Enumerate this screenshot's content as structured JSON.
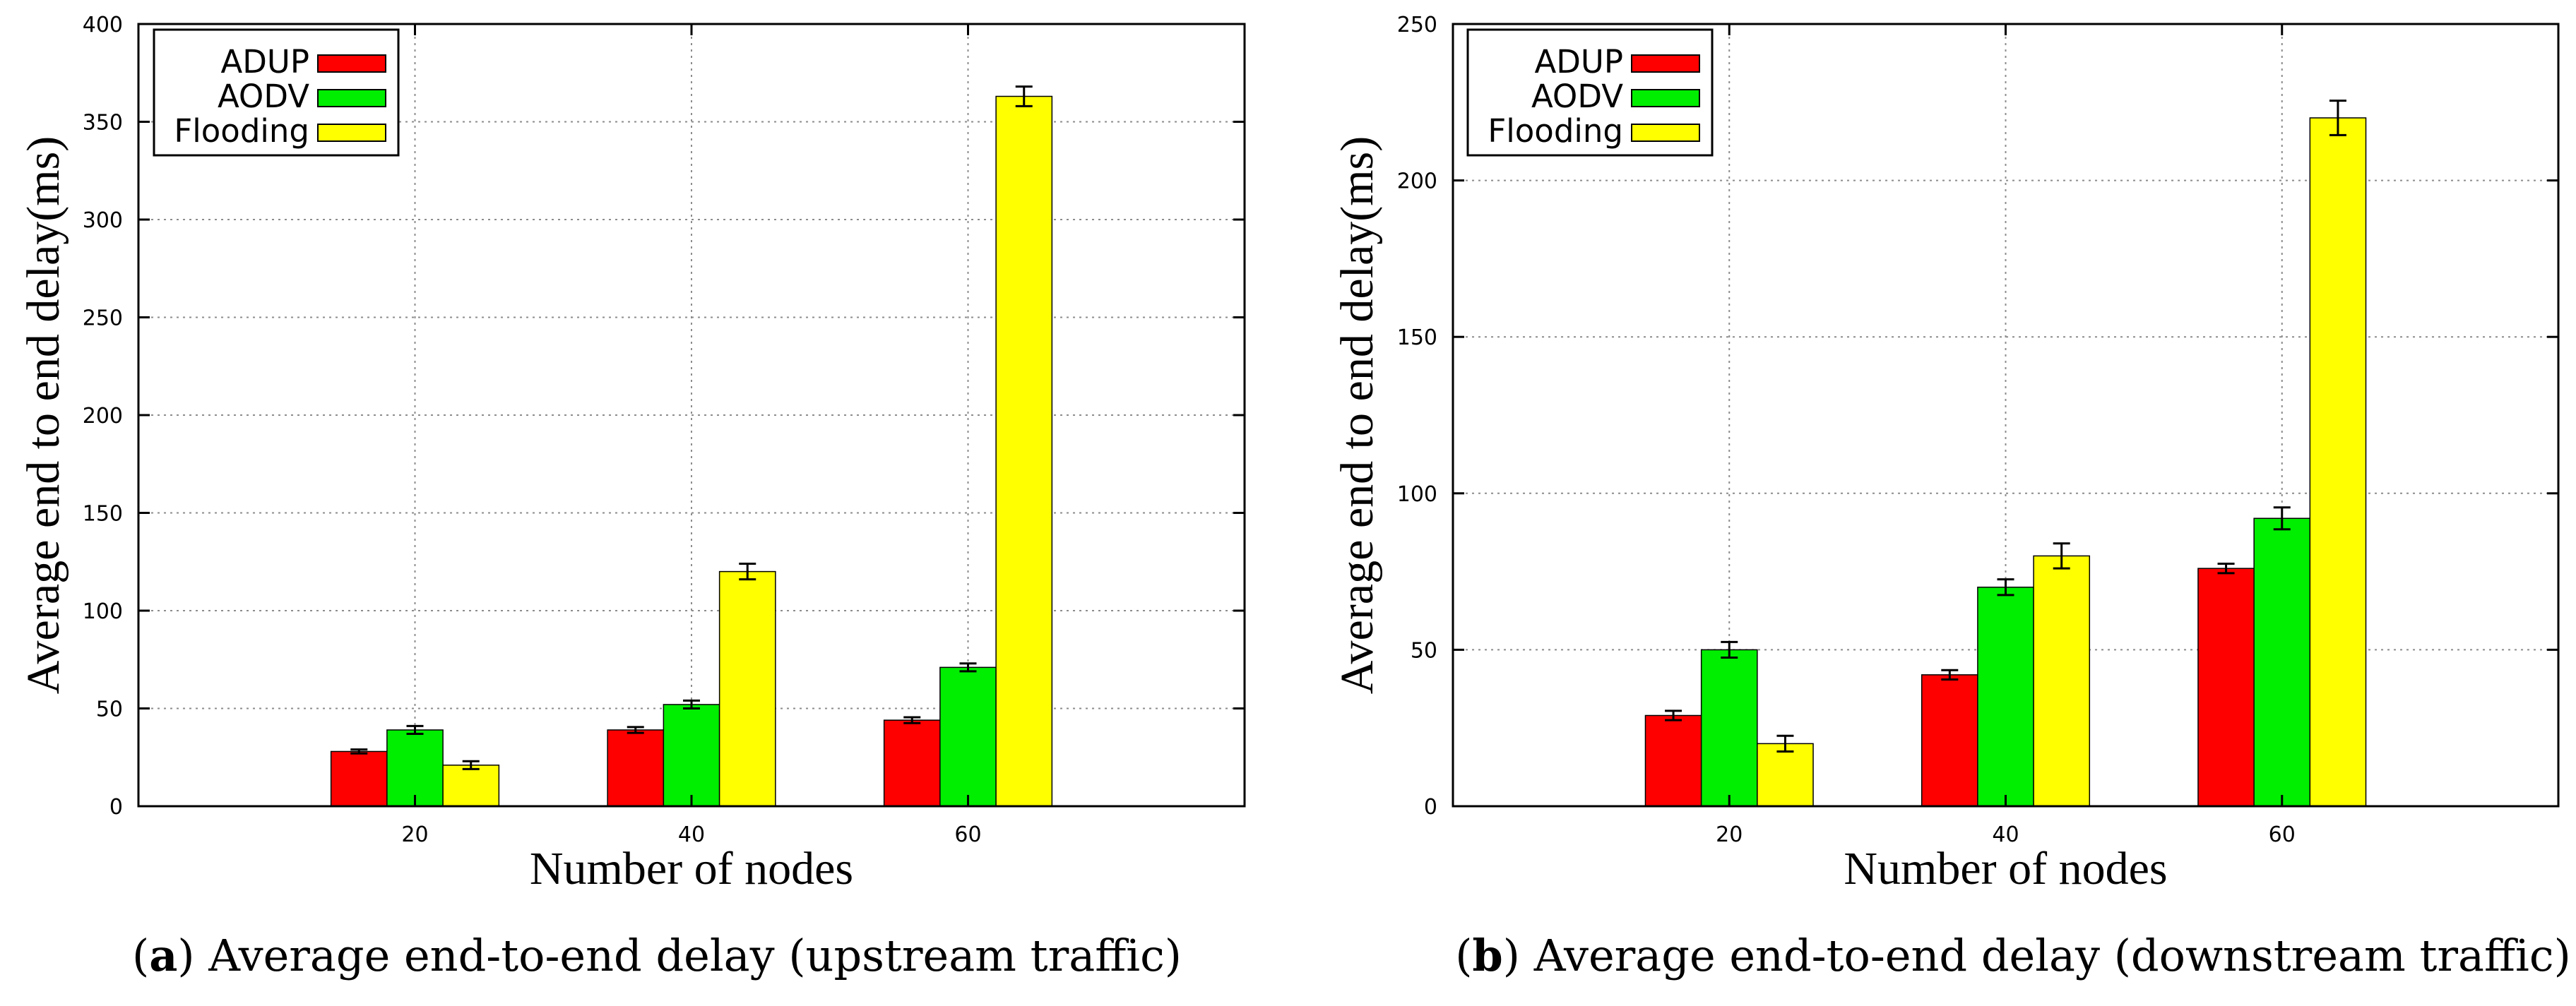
{
  "colors": {
    "adup": "#ff0000",
    "aodv": "#00ee00",
    "flooding": "#ffff00",
    "grid": "#8c8c8c",
    "axis": "#000000"
  },
  "chart_data": [
    {
      "type": "bar",
      "title": "",
      "xlabel": "Number of nodes",
      "ylabel": "Average end to end delay(ms)",
      "categories": [
        "20",
        "40",
        "60"
      ],
      "ylim": [
        0,
        400
      ],
      "yticks": [
        "0",
        "50",
        "100",
        "150",
        "200",
        "250",
        "300",
        "350",
        "400"
      ],
      "grid": true,
      "legend_position": "top-left",
      "series": [
        {
          "name": "ADUP",
          "color": "#ff0000",
          "values": [
            28,
            39,
            44
          ],
          "errors": [
            1,
            1.5,
            1.5
          ]
        },
        {
          "name": "AODV",
          "color": "#00ee00",
          "values": [
            39,
            52,
            71
          ],
          "errors": [
            2,
            2,
            2
          ]
        },
        {
          "name": "Flooding",
          "color": "#ffff00",
          "values": [
            21,
            120,
            363
          ],
          "errors": [
            2,
            4,
            5
          ]
        }
      ],
      "caption_label": "a",
      "caption_text": " Average end-to-end delay (upstream traffic)"
    },
    {
      "type": "bar",
      "title": "",
      "xlabel": "Number of nodes",
      "ylabel": "Average end to end delay(ms)",
      "categories": [
        "20",
        "40",
        "60"
      ],
      "ylim": [
        0,
        250
      ],
      "yticks": [
        "0",
        "50",
        "100",
        "150",
        "200",
        "250"
      ],
      "grid": true,
      "legend_position": "top-left",
      "series": [
        {
          "name": "ADUP",
          "color": "#ff0000",
          "values": [
            29,
            42,
            76
          ],
          "errors": [
            1.5,
            1.5,
            1.5
          ]
        },
        {
          "name": "AODV",
          "color": "#00ee00",
          "values": [
            50,
            70,
            92
          ],
          "errors": [
            2.5,
            2.5,
            3.5
          ]
        },
        {
          "name": "Flooding",
          "color": "#ffff00",
          "values": [
            20,
            80,
            220
          ],
          "errors": [
            2.5,
            4,
            5.5
          ]
        }
      ],
      "caption_label": "b",
      "caption_text": " Average end-to-end delay (downstream traffic)"
    }
  ]
}
